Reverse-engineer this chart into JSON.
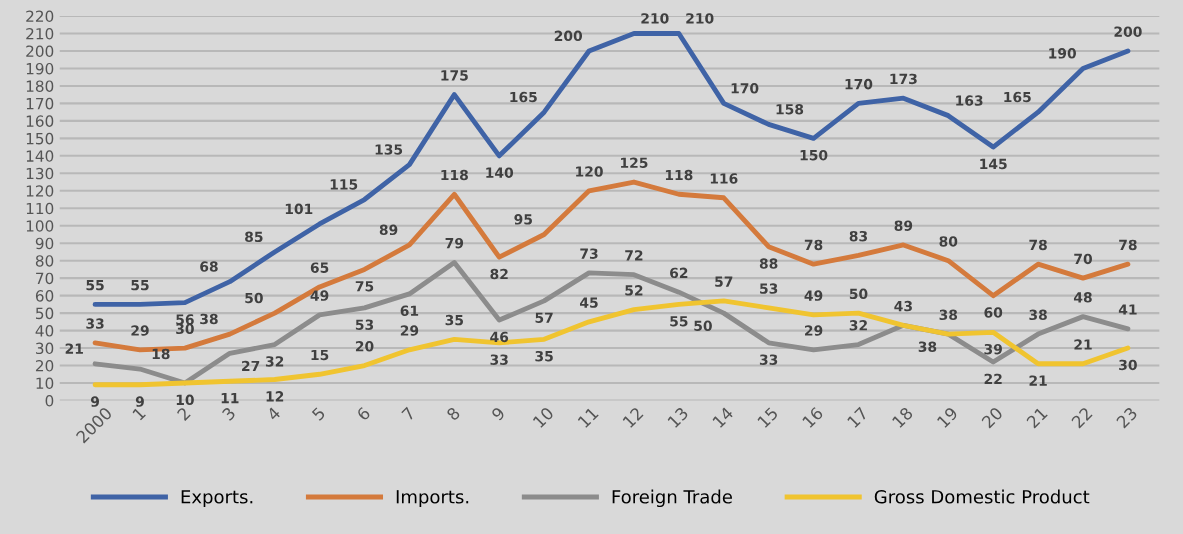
{
  "chart_data": {
    "type": "line",
    "categories": [
      "2000",
      "1",
      "2",
      "3",
      "4",
      "5",
      "6",
      "7",
      "8",
      "9",
      "10",
      "11",
      "12",
      "13",
      "14",
      "15",
      "16",
      "17",
      "18",
      "19",
      "20",
      "21",
      "22",
      "23"
    ],
    "series": [
      {
        "name": "Exports.",
        "color": "#3f63a6",
        "values": [
          55,
          55,
          56,
          68,
          85,
          101,
          115,
          135,
          175,
          140,
          165,
          200,
          210,
          210,
          170,
          158,
          150,
          170,
          173,
          163,
          145,
          165,
          190,
          200
        ]
      },
      {
        "name": "Imports.",
        "color": "#d47a3c",
        "values": [
          33,
          29,
          30,
          38,
          50,
          65,
          75,
          89,
          118,
          82,
          95,
          120,
          125,
          118,
          116,
          88,
          78,
          83,
          89,
          80,
          60,
          78,
          70,
          78
        ]
      },
      {
        "name": "Foreign Trade",
        "color": "#8c8c8c",
        "values": [
          21,
          18,
          10,
          27,
          32,
          49,
          53,
          61,
          79,
          46,
          57,
          73,
          72,
          62,
          50,
          33,
          29,
          32,
          43,
          38,
          22,
          38,
          48,
          41
        ],
        "value_labels": [
          "21",
          "18",
          null,
          "27",
          "32",
          "49",
          "53",
          "61",
          "79",
          "46",
          "57",
          "73",
          "72",
          "62",
          "50",
          "33",
          "29",
          "32",
          null,
          "38",
          "22",
          "38",
          "48",
          "41"
        ]
      },
      {
        "name": "Gross Domestic Product",
        "color": "#f0c430",
        "values": [
          9,
          9,
          10,
          11,
          12,
          15,
          20,
          29,
          35,
          33,
          35,
          45,
          52,
          55,
          57,
          53,
          49,
          50,
          43,
          38,
          39,
          21,
          21,
          30
        ]
      }
    ],
    "ylim": [
      0,
      220
    ],
    "yticks": [
      0,
      10,
      20,
      30,
      40,
      50,
      60,
      70,
      80,
      90,
      100,
      110,
      120,
      130,
      140,
      150,
      160,
      170,
      180,
      190,
      200,
      210,
      220
    ],
    "grid": "y",
    "legend": "bottom",
    "data_labels": true,
    "marker": "none",
    "line_style": "solid"
  }
}
